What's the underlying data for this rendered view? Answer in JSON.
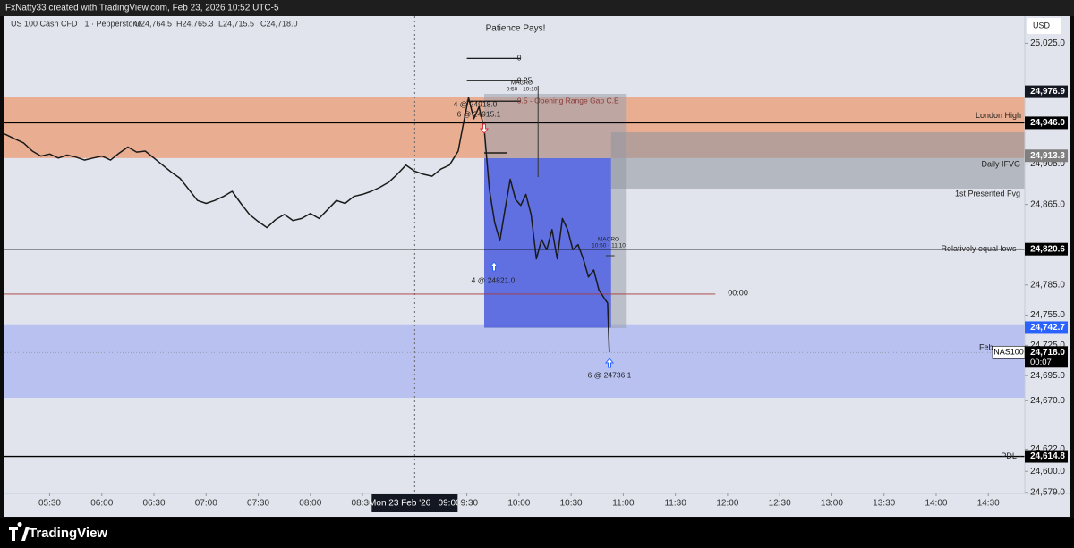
{
  "header": {
    "title": "FxNatty33 created with TradingView.com, Feb 23, 2026 10:52 UTC-5",
    "symbol": "US 100 Cash CFD · 1 · Pepperstone",
    "ohlc": [
      "O24,764.5",
      "H24,765.3",
      "L24,715.5",
      "C24,718.0"
    ]
  },
  "footer": {
    "brand": "TradingView"
  },
  "chart_data": {
    "type": "line",
    "title": "Patience Pays!",
    "currency": "USD",
    "ylim": [
      24578,
      25052
    ],
    "yticks": [
      {
        "value": 25025,
        "label": "25,025.0"
      },
      {
        "value": 24905,
        "label": "24,905.0"
      },
      {
        "value": 24865,
        "label": "24,865.0"
      },
      {
        "value": 24785,
        "label": "24,785.0"
      },
      {
        "value": 24755,
        "label": "24,755.0"
      },
      {
        "value": 24725,
        "label": "24,725.0"
      },
      {
        "value": 24695,
        "label": "24,695.0"
      },
      {
        "value": 24670,
        "label": "24,670.0"
      },
      {
        "value": 24622,
        "label": "24,622.0"
      },
      {
        "value": 24600,
        "label": "24,600.0"
      },
      {
        "value": 24579,
        "label": "24,579.0"
      }
    ],
    "xlim": [
      "05:04",
      "14:51"
    ],
    "xticks": [
      "05:30",
      "06:00",
      "06:30",
      "07:00",
      "07:30",
      "08:00",
      "08:30",
      "09:30",
      "10:00",
      "10:30",
      "11:00",
      "11:30",
      "12:00",
      "12:30",
      "13:00",
      "13:30",
      "14:00",
      "14:30"
    ],
    "crosshair": {
      "x": "09:00",
      "label": "Mon 23 Feb '26   09:00"
    },
    "series": [
      {
        "color": "#1a1a1a",
        "x": [
          "05:04",
          "05:10",
          "05:15",
          "05:20",
          "05:25",
          "05:30",
          "05:35",
          "05:40",
          "05:45",
          "05:50",
          "05:55",
          "06:00",
          "06:05",
          "06:10",
          "06:15",
          "06:20",
          "06:25",
          "06:30",
          "06:35",
          "06:40",
          "06:45",
          "06:50",
          "06:55",
          "07:00",
          "07:05",
          "07:10",
          "07:15",
          "07:20",
          "07:25",
          "07:30",
          "07:35",
          "07:40",
          "07:45",
          "07:50",
          "07:55",
          "08:00",
          "08:05",
          "08:10",
          "08:15",
          "08:20",
          "08:25",
          "08:30",
          "08:35",
          "08:40",
          "08:45",
          "08:50",
          "08:55",
          "09:00",
          "09:05",
          "09:10",
          "09:15",
          "09:20",
          "09:25",
          "09:28",
          "09:31",
          "09:34",
          "09:37",
          "09:40",
          "09:43",
          "09:46",
          "09:49",
          "09:52",
          "09:55",
          "09:58",
          "10:01",
          "10:04",
          "10:07",
          "10:10",
          "10:13",
          "10:16",
          "10:19",
          "10:22",
          "10:25",
          "10:28",
          "10:31",
          "10:34",
          "10:37",
          "10:40",
          "10:43",
          "10:46",
          "10:49",
          "10:51",
          "10:52"
        ],
        "values": [
          24935,
          24930,
          24926,
          24918,
          24913,
          24915,
          24911,
          24914,
          24912,
          24909,
          24911,
          24913,
          24909,
          24916,
          24922,
          24917,
          24918,
          24911,
          24904,
          24897,
          24891,
          24880,
          24869,
          24866,
          24869,
          24873,
          24878,
          24866,
          24855,
          24848,
          24842,
          24850,
          24855,
          24849,
          24851,
          24856,
          24851,
          24860,
          24869,
          24866,
          24873,
          24875,
          24878,
          24882,
          24887,
          24895,
          24904,
          24898,
          24895,
          24893,
          24900,
          24904,
          24918,
          24945,
          24971,
          24950,
          24962,
          24940,
          24880,
          24847,
          24829,
          24860,
          24890,
          24870,
          24864,
          24875,
          24855,
          24811,
          24830,
          24820,
          24840,
          24811,
          24851,
          24840,
          24820,
          24825,
          24811,
          24793,
          24800,
          24780,
          24772,
          24767,
          24718
        ]
      }
    ],
    "zones": [
      {
        "color": "#b5bff0",
        "y": [
          24746,
          24673
        ],
        "x": [
          "05:04",
          "14:51"
        ]
      },
      {
        "color": "#e9ab8d",
        "y": [
          24972,
          24911
        ],
        "x": [
          "05:04",
          "14:51"
        ]
      },
      {
        "color": "#9aa0ae",
        "y": [
          24974.8,
          24742.2
        ],
        "x": [
          "09:40",
          "11:02"
        ]
      },
      {
        "color": "#8e939e",
        "y": [
          24936.6,
          24880.7
        ],
        "x": [
          "10:53",
          "14:51"
        ]
      },
      {
        "color": "#4a5de6",
        "y": [
          24910.9,
          24742.7
        ],
        "x": [
          "09:40",
          "10:53"
        ]
      }
    ],
    "levels": [
      {
        "value": 24946.0,
        "label": "London High",
        "color": "#000000"
      },
      {
        "value": 24820.6,
        "label": "Relatively equal lows -",
        "color": "#000000"
      },
      {
        "value": 24614.8,
        "label": "PDL -",
        "color": "#000000"
      },
      {
        "value": 24776,
        "label": "00:00",
        "color": "#a33a3a"
      },
      {
        "value": 24718.0,
        "color": "#8a8f99"
      }
    ],
    "fib": [
      {
        "value": 25010,
        "label": "0"
      },
      {
        "value": 24988,
        "label": "0.25"
      },
      {
        "value": 24967.5,
        "label": "0.5 - Opening Range Gap C.E"
      }
    ],
    "price_labels": [
      {
        "value": 24976.9,
        "label": "24,976.9",
        "color": "#131722"
      },
      {
        "value": 24946.0,
        "label": "24,946.0",
        "color": "#000000"
      },
      {
        "value": 24913.3,
        "label": "24,913.3",
        "color": "#7f7f7f"
      },
      {
        "value": 24820.6,
        "label": "24,820.6",
        "color": "#000000"
      },
      {
        "value": 24742.7,
        "label": "24,742.7",
        "color": "#2962ff"
      },
      {
        "value": 24718.0,
        "label": "24,718.0",
        "color": "#000000",
        "sub": "00:07",
        "tag": "NAS100"
      },
      {
        "value": 24614.8,
        "label": "24,614.8",
        "color": "#000000"
      }
    ],
    "annotations": [
      "MACRO",
      "9:50 - 10:10",
      "MACRO",
      "10:50 - 11:10",
      "4 @ 24918.0",
      "6 @ 24915.1",
      "4 @ 24821.0",
      "6 @ 24736.1",
      "Daily IFVG",
      "1st Presented Fvg",
      "Feb"
    ]
  }
}
